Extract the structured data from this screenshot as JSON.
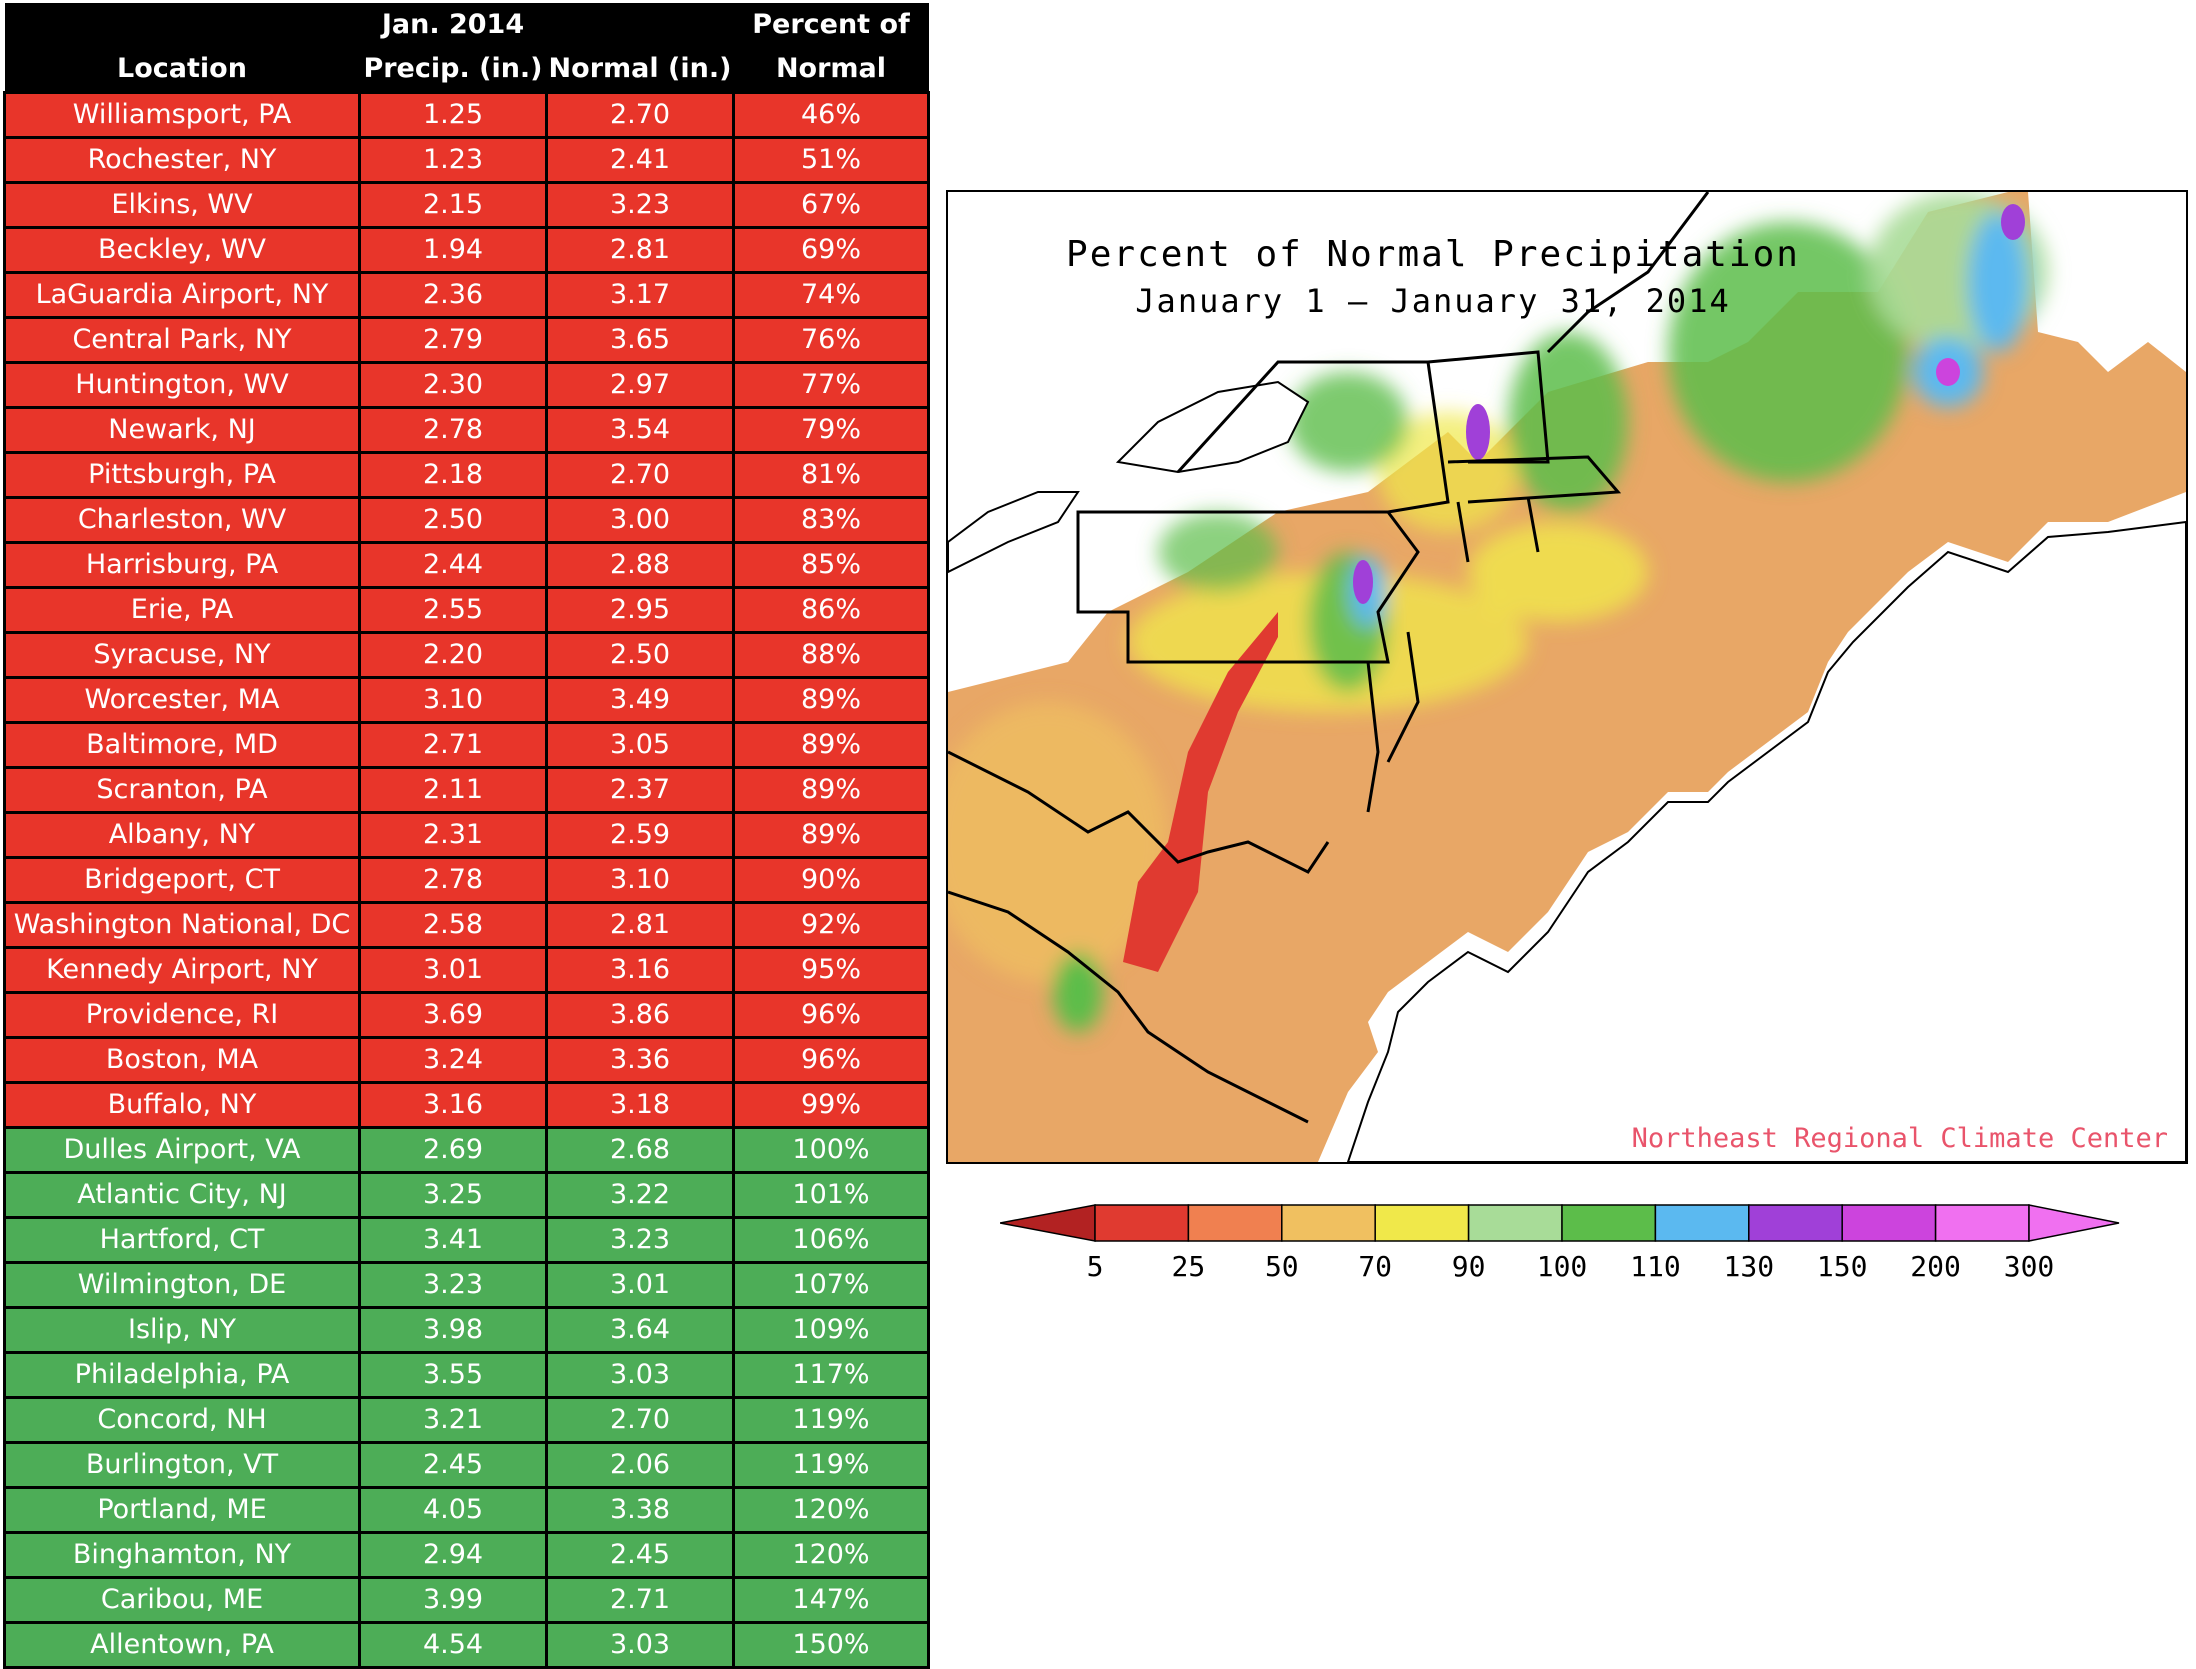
{
  "table": {
    "headers": [
      {
        "line1": "",
        "line2": "Location"
      },
      {
        "line1": "Jan. 2014",
        "line2": "Precip. (in.)"
      },
      {
        "line1": "",
        "line2": "Normal (in.)"
      },
      {
        "line1": "Percent of",
        "line2": "Normal"
      }
    ],
    "rows": [
      {
        "location": "Williamsport, PA",
        "precip": "1.25",
        "normal": "2.70",
        "percent": "46%",
        "status": "below"
      },
      {
        "location": "Rochester, NY",
        "precip": "1.23",
        "normal": "2.41",
        "percent": "51%",
        "status": "below"
      },
      {
        "location": "Elkins, WV",
        "precip": "2.15",
        "normal": "3.23",
        "percent": "67%",
        "status": "below"
      },
      {
        "location": "Beckley, WV",
        "precip": "1.94",
        "normal": "2.81",
        "percent": "69%",
        "status": "below"
      },
      {
        "location": "LaGuardia Airport, NY",
        "precip": "2.36",
        "normal": "3.17",
        "percent": "74%",
        "status": "below"
      },
      {
        "location": "Central Park, NY",
        "precip": "2.79",
        "normal": "3.65",
        "percent": "76%",
        "status": "below"
      },
      {
        "location": "Huntington, WV",
        "precip": "2.30",
        "normal": "2.97",
        "percent": "77%",
        "status": "below"
      },
      {
        "location": "Newark, NJ",
        "precip": "2.78",
        "normal": "3.54",
        "percent": "79%",
        "status": "below"
      },
      {
        "location": "Pittsburgh, PA",
        "precip": "2.18",
        "normal": "2.70",
        "percent": "81%",
        "status": "below"
      },
      {
        "location": "Charleston, WV",
        "precip": "2.50",
        "normal": "3.00",
        "percent": "83%",
        "status": "below"
      },
      {
        "location": "Harrisburg, PA",
        "precip": "2.44",
        "normal": "2.88",
        "percent": "85%",
        "status": "below"
      },
      {
        "location": "Erie, PA",
        "precip": "2.55",
        "normal": "2.95",
        "percent": "86%",
        "status": "below"
      },
      {
        "location": "Syracuse, NY",
        "precip": "2.20",
        "normal": "2.50",
        "percent": "88%",
        "status": "below"
      },
      {
        "location": "Worcester, MA",
        "precip": "3.10",
        "normal": "3.49",
        "percent": "89%",
        "status": "below"
      },
      {
        "location": "Baltimore, MD",
        "precip": "2.71",
        "normal": "3.05",
        "percent": "89%",
        "status": "below"
      },
      {
        "location": "Scranton, PA",
        "precip": "2.11",
        "normal": "2.37",
        "percent": "89%",
        "status": "below"
      },
      {
        "location": "Albany, NY",
        "precip": "2.31",
        "normal": "2.59",
        "percent": "89%",
        "status": "below"
      },
      {
        "location": "Bridgeport, CT",
        "precip": "2.78",
        "normal": "3.10",
        "percent": "90%",
        "status": "below"
      },
      {
        "location": "Washington National, DC",
        "precip": "2.58",
        "normal": "2.81",
        "percent": "92%",
        "status": "below"
      },
      {
        "location": "Kennedy Airport, NY",
        "precip": "3.01",
        "normal": "3.16",
        "percent": "95%",
        "status": "below"
      },
      {
        "location": "Providence, RI",
        "precip": "3.69",
        "normal": "3.86",
        "percent": "96%",
        "status": "below"
      },
      {
        "location": "Boston, MA",
        "precip": "3.24",
        "normal": "3.36",
        "percent": "96%",
        "status": "below"
      },
      {
        "location": "Buffalo, NY",
        "precip": "3.16",
        "normal": "3.18",
        "percent": "99%",
        "status": "below"
      },
      {
        "location": "Dulles Airport, VA",
        "precip": "2.69",
        "normal": "2.68",
        "percent": "100%",
        "status": "above"
      },
      {
        "location": "Atlantic City, NJ",
        "precip": "3.25",
        "normal": "3.22",
        "percent": "101%",
        "status": "above"
      },
      {
        "location": "Hartford, CT",
        "precip": "3.41",
        "normal": "3.23",
        "percent": "106%",
        "status": "above"
      },
      {
        "location": "Wilmington, DE",
        "precip": "3.23",
        "normal": "3.01",
        "percent": "107%",
        "status": "above"
      },
      {
        "location": "Islip, NY",
        "precip": "3.98",
        "normal": "3.64",
        "percent": "109%",
        "status": "above"
      },
      {
        "location": "Philadelphia, PA",
        "precip": "3.55",
        "normal": "3.03",
        "percent": "117%",
        "status": "above"
      },
      {
        "location": "Concord, NH",
        "precip": "3.21",
        "normal": "2.70",
        "percent": "119%",
        "status": "above"
      },
      {
        "location": "Burlington, VT",
        "precip": "2.45",
        "normal": "2.06",
        "percent": "119%",
        "status": "above"
      },
      {
        "location": "Portland, ME",
        "precip": "4.05",
        "normal": "3.38",
        "percent": "120%",
        "status": "above"
      },
      {
        "location": "Binghamton, NY",
        "precip": "2.94",
        "normal": "2.45",
        "percent": "120%",
        "status": "above"
      },
      {
        "location": "Caribou, ME",
        "precip": "3.99",
        "normal": "2.71",
        "percent": "147%",
        "status": "above"
      },
      {
        "location": "Allentown, PA",
        "precip": "4.54",
        "normal": "3.03",
        "percent": "150%",
        "status": "above"
      }
    ]
  },
  "map": {
    "title": "Percent of Normal Precipitation",
    "subtitle": "January 1 — January 31, 2014",
    "credit": "Northeast Regional Climate Center"
  },
  "legend": {
    "labels": [
      "5",
      "25",
      "50",
      "70",
      "90",
      "100",
      "110",
      "130",
      "150",
      "200",
      "300"
    ],
    "colors": [
      "#b22222",
      "#e03a30",
      "#f08050",
      "#f0c060",
      "#f0e84a",
      "#a8dc98",
      "#5cbd4a",
      "#5bb9f0",
      "#a040d8",
      "#cc44dd",
      "#f070f0"
    ]
  },
  "colors": {
    "below_normal": "#e8352a",
    "above_normal": "#4dad57",
    "header": "#000000",
    "credit": "#e9546b"
  }
}
